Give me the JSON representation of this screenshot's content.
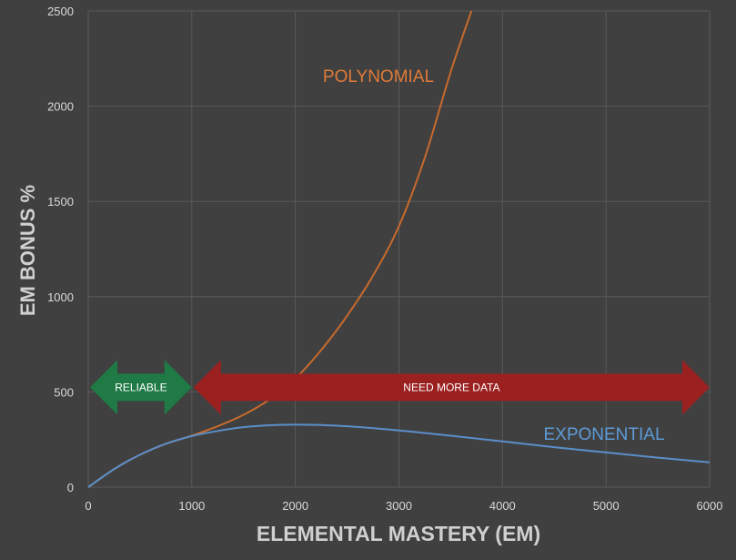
{
  "chart_data": {
    "type": "line",
    "xlabel": "ELEMENTAL MASTERY (EM)",
    "ylabel": "EM BONUS %",
    "xlim": [
      0,
      6000
    ],
    "ylim": [
      0,
      2500
    ],
    "x_ticks": [
      0,
      1000,
      2000,
      3000,
      4000,
      5000,
      6000
    ],
    "y_ticks": [
      0,
      500,
      1000,
      1500,
      2000,
      2500
    ],
    "grid": true,
    "legend": "none",
    "series": [
      {
        "name": "POLYNOMIAL",
        "color": "#c86a2c",
        "x": [
          0,
          250,
          500,
          750,
          1000,
          1250,
          1500,
          1750,
          2000,
          2250,
          2500,
          2750,
          3000,
          3250,
          3500,
          3700
        ],
        "y": [
          0,
          95,
          170,
          228,
          270,
          320,
          380,
          460,
          570,
          720,
          900,
          1110,
          1370,
          1730,
          2180,
          2500
        ]
      },
      {
        "name": "EXPONENTIAL",
        "color": "#5b8ec9",
        "x": [
          0,
          250,
          500,
          750,
          1000,
          1250,
          1500,
          1750,
          2000,
          2250,
          2500,
          3000,
          3500,
          4000,
          4500,
          5000,
          5500,
          6000
        ],
        "y": [
          0,
          95,
          170,
          228,
          268,
          295,
          315,
          325,
          328,
          326,
          320,
          298,
          270,
          240,
          210,
          182,
          155,
          130
        ]
      }
    ],
    "annotations": [
      {
        "text": "RELIABLE",
        "x_start": 0,
        "x_end": 1000,
        "y": 500,
        "color": "#1f7a45"
      },
      {
        "text": "NEED MORE DATA",
        "x_start": 1000,
        "x_end": 6000,
        "y": 500,
        "color": "#9b2121"
      }
    ]
  }
}
